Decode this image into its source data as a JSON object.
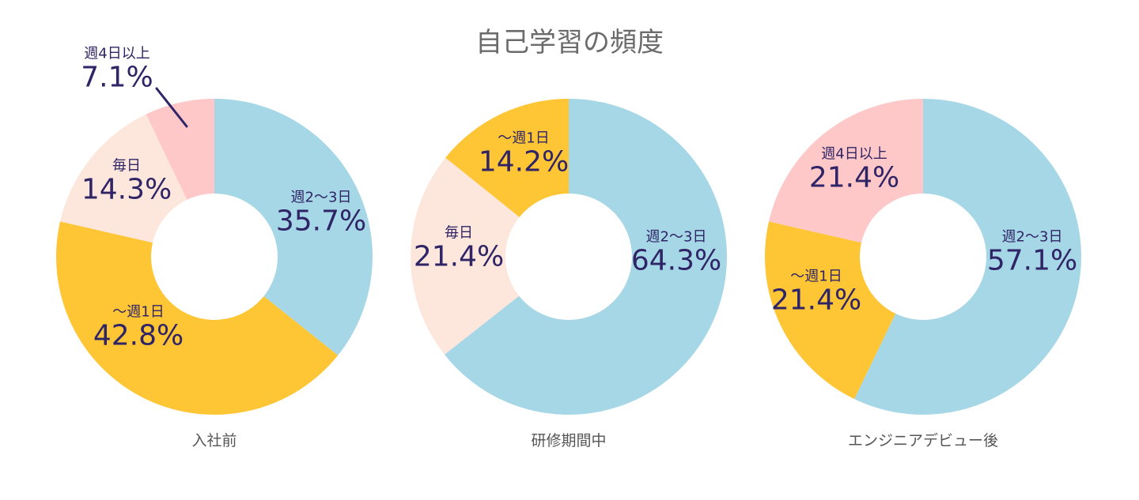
{
  "chart_data": {
    "type": "pie",
    "title": "自己学習の頻度",
    "colors": {
      "週2〜3日": "#a6d7e6",
      "〜週1日": "#fec534",
      "毎日": "#fde6dc",
      "週4日以上": "#ffc8c8"
    },
    "text_color": "#2f2466",
    "charts": [
      {
        "name": "入社前",
        "slices": [
          {
            "label": "週2〜3日",
            "value": 35.7,
            "pct": "35.7%"
          },
          {
            "label": "〜週1日",
            "value": 42.8,
            "pct": "42.8%"
          },
          {
            "label": "毎日",
            "value": 14.3,
            "pct": "14.3%"
          },
          {
            "label": "週4日以上",
            "value": 7.1,
            "pct": "7.1%"
          }
        ]
      },
      {
        "name": "研修期間中",
        "slices": [
          {
            "label": "週2〜3日",
            "value": 64.3,
            "pct": "64.3%"
          },
          {
            "label": "毎日",
            "value": 21.4,
            "pct": "21.4%"
          },
          {
            "label": "〜週1日",
            "value": 14.2,
            "pct": "14.2%"
          }
        ]
      },
      {
        "name": "エンジニアデビュー後",
        "slices": [
          {
            "label": "週2〜3日",
            "value": 57.1,
            "pct": "57.1%"
          },
          {
            "label": "〜週1日",
            "value": 21.4,
            "pct": "21.4%"
          },
          {
            "label": "週4日以上",
            "value": 21.4,
            "pct": "21.4%"
          }
        ]
      }
    ]
  }
}
